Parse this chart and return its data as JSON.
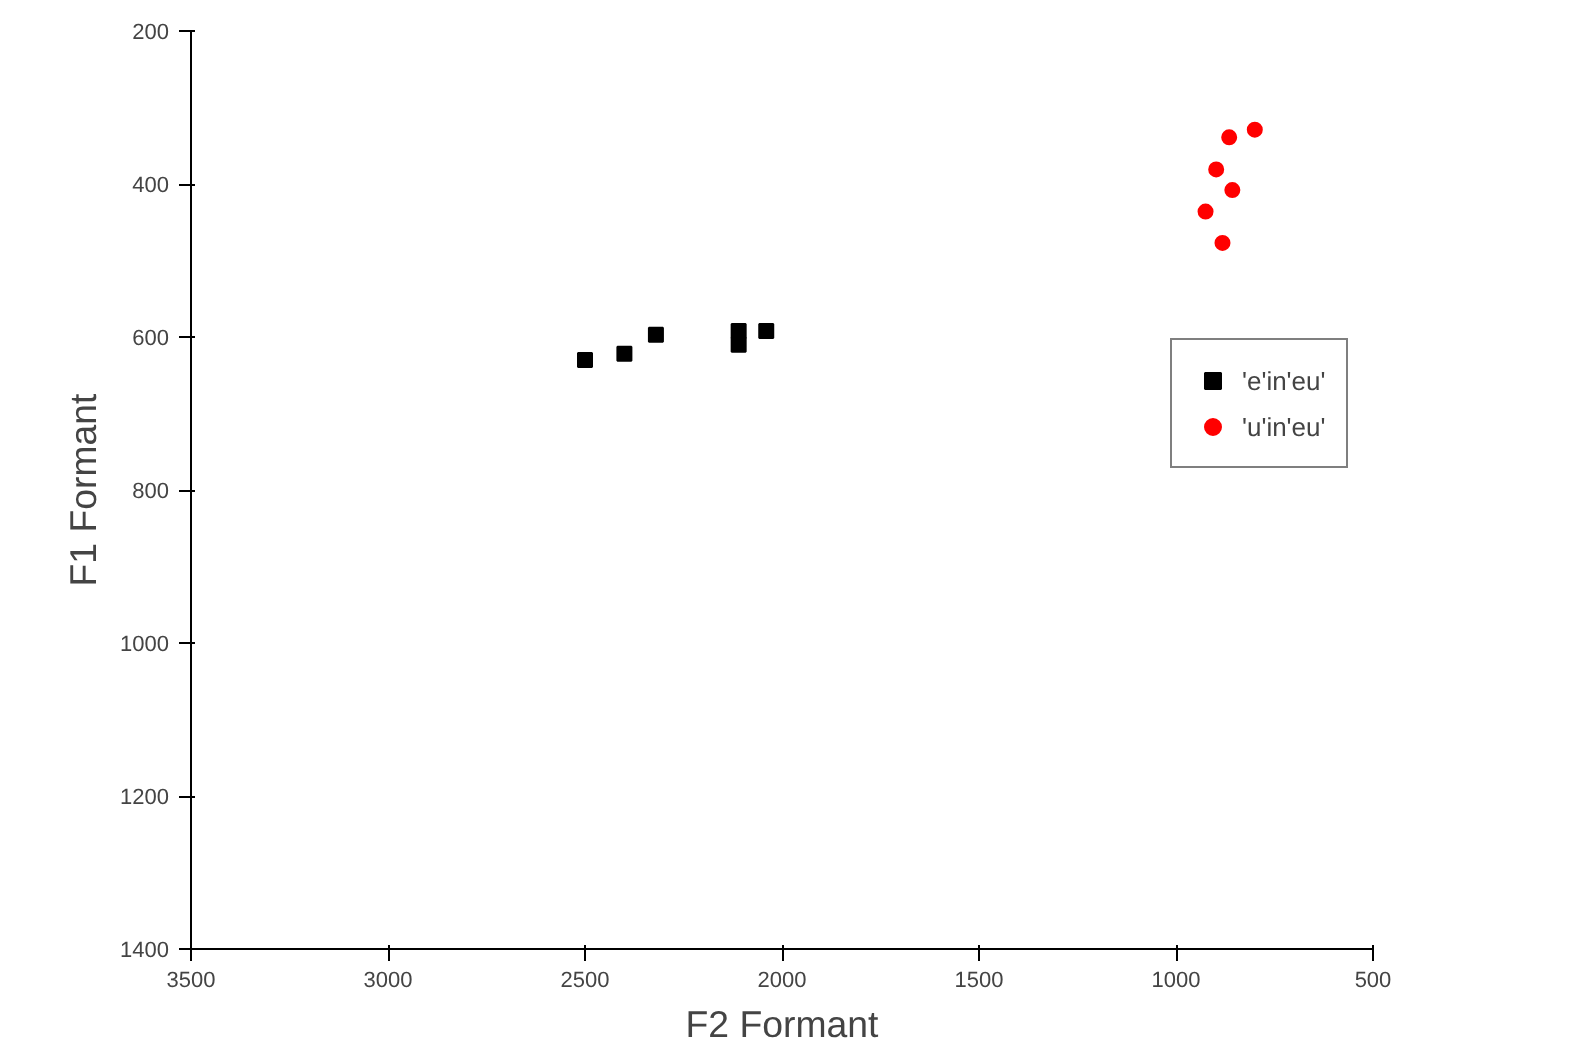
{
  "chart_data": {
    "type": "scatter",
    "xlabel": "F2 Formant",
    "ylabel": "F1 Formant",
    "xlim": [
      3500,
      500
    ],
    "ylim": [
      1400,
      200
    ],
    "xticks": [
      3500,
      3000,
      2500,
      2000,
      1500,
      1000,
      500
    ],
    "yticks": [
      200,
      400,
      600,
      800,
      1000,
      1200,
      1400
    ],
    "grid": false,
    "legend": "right",
    "series": [
      {
        "name": "'e'in'eu'",
        "color": "#000000",
        "marker": "square",
        "x": [
          2500,
          2400,
          2320,
          2110,
          2110,
          2040
        ],
        "values": [
          630,
          622,
          597,
          592,
          610,
          592
        ]
      },
      {
        "name": "'u'in'eu'",
        "color": "#ff0000",
        "marker": "circle",
        "x": [
          800,
          865,
          898,
          857,
          925,
          882
        ],
        "values": [
          329,
          339,
          381,
          408,
          436,
          477
        ]
      }
    ]
  }
}
